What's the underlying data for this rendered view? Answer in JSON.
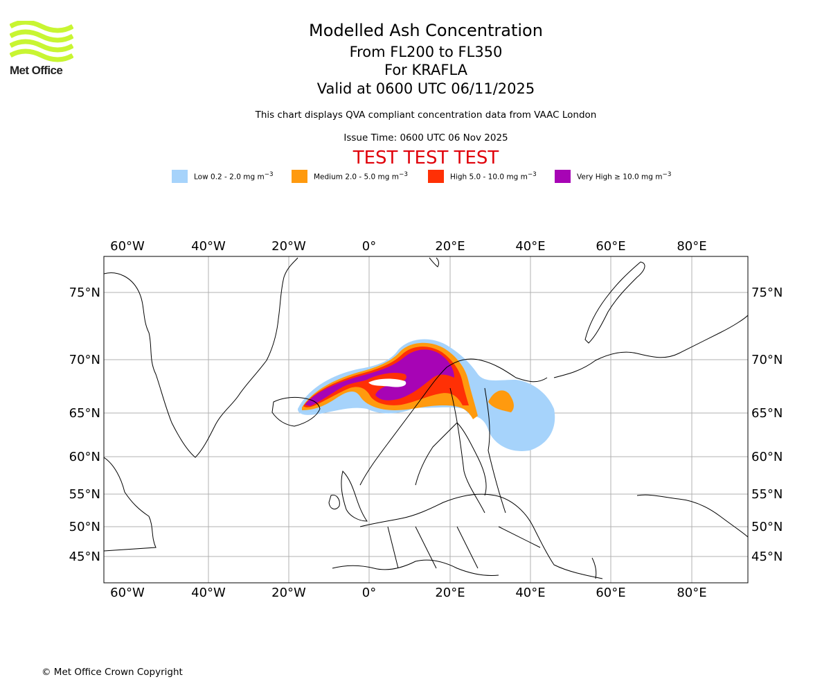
{
  "logo": {
    "name": "Met Office",
    "color": "#c8f532"
  },
  "header": {
    "title": "Modelled Ash Concentration",
    "levels": "From FL200 to FL350",
    "volcano": "For KRAFLA",
    "valid": "Valid at 0600 UTC 06/11/2025",
    "description": "This chart displays QVA compliant concentration data from VAAC London",
    "issue_time": "Issue Time: 0600 UTC 06 Nov 2025",
    "test_banner": "TEST TEST TEST"
  },
  "legend": [
    {
      "label_main": "Low 0.2 - 2.0 mg m",
      "sup": "−3",
      "color": "#a6d3fb"
    },
    {
      "label_main": "Medium 2.0 - 5.0 mg m",
      "sup": "−3",
      "color": "#ff9a0e"
    },
    {
      "label_main": "High 5.0 - 10.0 mg m",
      "sup": "−3",
      "color": "#ff3005"
    },
    {
      "label_main": "Very High ≥ 10.0 mg m",
      "sup": "−3",
      "color": "#a704b5"
    }
  ],
  "map": {
    "lon_labels": [
      "60°W",
      "40°W",
      "20°W",
      "0°",
      "20°E",
      "40°E",
      "60°E",
      "80°E"
    ],
    "lat_labels": [
      "75°N",
      "70°N",
      "65°N",
      "60°N",
      "55°N",
      "50°N",
      "45°N"
    ]
  },
  "footer": {
    "copyright": "© Met Office Crown Copyright"
  }
}
